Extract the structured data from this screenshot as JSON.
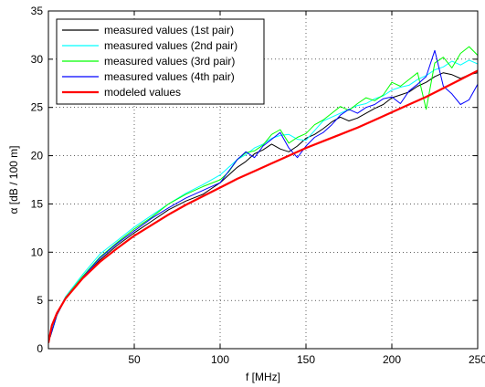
{
  "chart_data": {
    "type": "line",
    "title": "",
    "xlabel": "f [MHz]",
    "ylabel": "α [dB / 100 m]",
    "xlim": [
      0,
      250
    ],
    "ylim": [
      0,
      35
    ],
    "xticks": [
      50,
      100,
      150,
      200,
      250
    ],
    "yticks": [
      0,
      5,
      10,
      15,
      20,
      25,
      30,
      35
    ],
    "xtick_labels": [
      "50",
      "100",
      "150",
      "200",
      "250"
    ],
    "ytick_labels": [
      "0",
      "5",
      "10",
      "15",
      "20",
      "25",
      "30",
      "35"
    ],
    "grid": true,
    "legend_position": "top-left",
    "series": [
      {
        "name": "measured values (1st pair)",
        "color": "#000000",
        "x": [
          1,
          5,
          10,
          20,
          30,
          40,
          50,
          60,
          70,
          80,
          90,
          95,
          100,
          105,
          110,
          115,
          120,
          125,
          130,
          135,
          140,
          145,
          150,
          155,
          160,
          165,
          170,
          175,
          180,
          185,
          190,
          195,
          200,
          205,
          210,
          215,
          220,
          225,
          230,
          235,
          240,
          245,
          250
        ],
        "y": [
          1.2,
          3.5,
          5.2,
          7.3,
          9.2,
          10.7,
          12.0,
          13.2,
          14.4,
          15.3,
          16.0,
          16.6,
          17.2,
          18.0,
          18.8,
          19.4,
          20.2,
          20.6,
          21.2,
          20.7,
          20.4,
          21.0,
          21.8,
          22.2,
          22.8,
          23.5,
          24.0,
          23.6,
          23.9,
          24.4,
          24.9,
          25.3,
          26.0,
          26.3,
          26.6,
          27.2,
          27.6,
          28.2,
          28.6,
          28.4,
          28.0,
          28.4,
          28.6
        ]
      },
      {
        "name": "measured values (2nd pair)",
        "color": "#00ffff",
        "x": [
          1,
          5,
          10,
          20,
          30,
          40,
          50,
          60,
          70,
          80,
          90,
          100,
          105,
          110,
          115,
          120,
          125,
          130,
          135,
          140,
          145,
          150,
          155,
          160,
          165,
          170,
          175,
          180,
          185,
          190,
          195,
          200,
          205,
          210,
          215,
          220,
          225,
          230,
          235,
          240,
          245,
          250
        ],
        "y": [
          1.2,
          3.6,
          5.4,
          7.7,
          9.8,
          11.2,
          12.6,
          13.8,
          15.0,
          16.1,
          17.0,
          18.0,
          18.8,
          19.6,
          20.1,
          20.8,
          21.2,
          21.8,
          22.1,
          22.2,
          21.7,
          21.6,
          22.6,
          23.6,
          24.0,
          24.4,
          24.8,
          25.2,
          25.4,
          25.9,
          26.2,
          26.8,
          27.1,
          27.3,
          27.9,
          28.3,
          28.9,
          29.2,
          29.8,
          29.4,
          29.9,
          29.5
        ]
      },
      {
        "name": "measured values (3rd pair)",
        "color": "#00ff00",
        "x": [
          1,
          5,
          10,
          20,
          30,
          40,
          50,
          60,
          70,
          80,
          90,
          100,
          105,
          110,
          115,
          120,
          125,
          130,
          135,
          140,
          145,
          150,
          155,
          160,
          165,
          170,
          175,
          180,
          185,
          190,
          195,
          200,
          205,
          210,
          215,
          220,
          225,
          230,
          235,
          240,
          245,
          250
        ],
        "y": [
          1.2,
          3.5,
          5.3,
          7.5,
          9.5,
          11.0,
          12.4,
          13.6,
          15.0,
          16.0,
          16.8,
          17.5,
          18.3,
          19.6,
          20.3,
          20.5,
          21.1,
          22.2,
          22.7,
          21.3,
          21.9,
          22.3,
          23.2,
          23.7,
          24.4,
          25.1,
          24.7,
          25.4,
          26.0,
          25.7,
          26.3,
          27.6,
          27.2,
          27.9,
          28.6,
          24.8,
          29.6,
          30.2,
          29.1,
          30.6,
          31.3,
          30.4
        ]
      },
      {
        "name": "measured values (4th pair)",
        "color": "#0000ff",
        "x": [
          1,
          5,
          10,
          20,
          30,
          40,
          50,
          60,
          70,
          80,
          90,
          100,
          105,
          110,
          115,
          120,
          125,
          130,
          135,
          140,
          145,
          150,
          155,
          160,
          165,
          170,
          175,
          180,
          185,
          190,
          195,
          200,
          205,
          210,
          215,
          220,
          225,
          230,
          235,
          240,
          245,
          250
        ],
        "y": [
          1.2,
          3.5,
          5.2,
          7.4,
          9.4,
          10.9,
          12.2,
          13.5,
          14.6,
          15.6,
          16.4,
          17.2,
          18.4,
          19.6,
          20.4,
          19.8,
          21.0,
          21.7,
          22.4,
          20.8,
          19.8,
          21.0,
          21.9,
          22.4,
          23.2,
          24.2,
          24.8,
          24.4,
          25.0,
          25.3,
          25.9,
          26.1,
          25.4,
          26.7,
          27.4,
          28.2,
          30.9,
          27.2,
          26.4,
          25.3,
          25.8,
          27.4
        ]
      },
      {
        "name": "modeled values",
        "color": "#ff0000",
        "x": [
          0,
          2,
          5,
          10,
          20,
          30,
          40,
          50,
          60,
          70,
          80,
          90,
          100,
          110,
          120,
          130,
          140,
          150,
          160,
          170,
          180,
          190,
          200,
          210,
          220,
          230,
          240,
          250
        ],
        "y": [
          0.6,
          2.4,
          3.7,
          5.2,
          7.3,
          9.0,
          10.4,
          11.7,
          12.8,
          13.9,
          14.9,
          15.8,
          16.7,
          17.6,
          18.4,
          19.2,
          20.0,
          20.8,
          21.5,
          22.2,
          22.9,
          23.7,
          24.5,
          25.3,
          26.1,
          27.0,
          27.9,
          28.8
        ]
      }
    ]
  }
}
